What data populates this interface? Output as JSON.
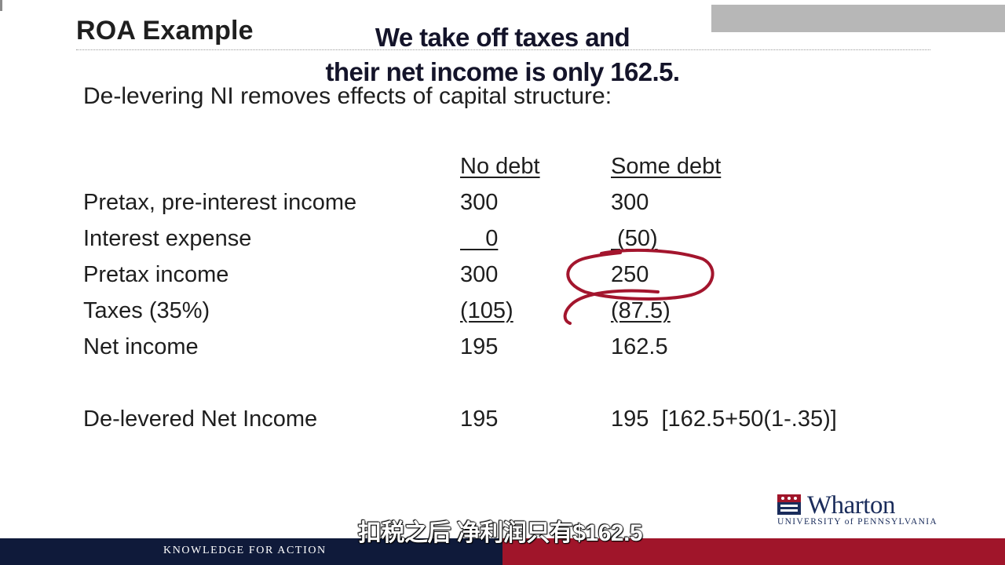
{
  "slide": {
    "title": "ROA Example",
    "subtitle": "De-levering NI removes effects of capital structure:",
    "columns": {
      "no_debt": "No debt",
      "some_debt": "Some debt"
    },
    "rows": [
      {
        "label": "Pretax, pre-interest income",
        "no_debt": "300",
        "some_debt": "300"
      },
      {
        "label": "Interest expense",
        "no_debt": "    0",
        "some_debt": " (50)"
      },
      {
        "label": "Pretax income",
        "no_debt": "300",
        "some_debt": "250"
      },
      {
        "label": "Taxes (35%)",
        "no_debt": "(105)",
        "some_debt": "(87.5)"
      },
      {
        "label": "Net income",
        "no_debt": "195",
        "some_debt": "162.5"
      },
      {
        "label": "De-levered Net Income",
        "no_debt": "195",
        "some_debt": "195  [162.5+50(1-.35)]"
      }
    ],
    "annotation_color": "#a3152d"
  },
  "subtitles": {
    "english": [
      "We take off taxes and",
      "their net income is only 162.5."
    ],
    "chinese": "扣税之后 净利润只有$162.5"
  },
  "branding": {
    "logo_name": "Wharton",
    "logo_subline": "UNIVERSITY of PENNSYLVANIA",
    "tagline": "KNOWLEDGE FOR ACTION",
    "colors": {
      "navy": "#0f1a3a",
      "red": "#a0152a"
    }
  }
}
